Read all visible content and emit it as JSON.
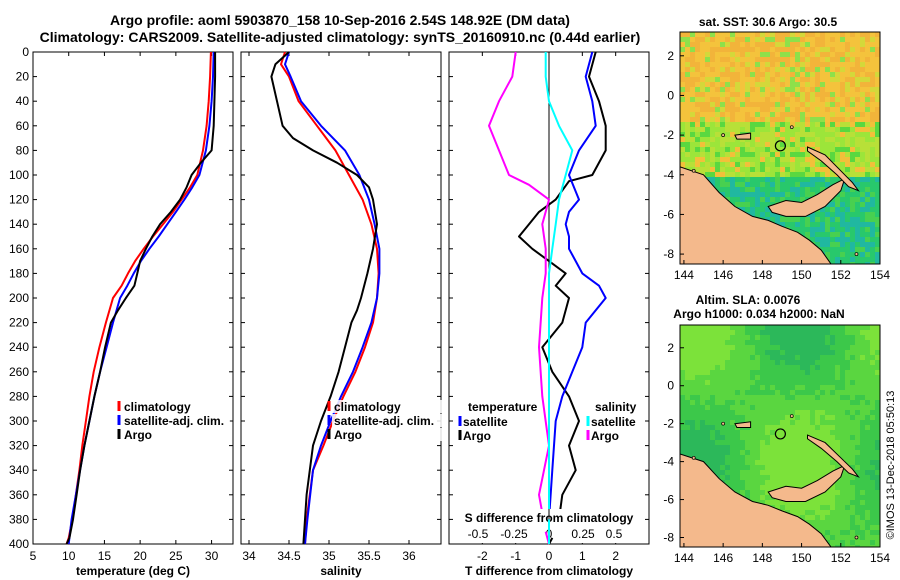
{
  "title": {
    "line1": "Argo profile: aoml 5903870_158 10-Sep-2016 2.54S 148.92E (DM data)",
    "line2": "Climatology: CARS2009. Satellite-adjusted climatology: synTS_20160910.nc (0.44d earlier)"
  },
  "colors": {
    "climatology": "#ff0000",
    "satellite": "#0000ff",
    "argo": "#000000",
    "t_argo": "#000000",
    "t_sat": "#0000ff",
    "s_argo": "#ff00ff",
    "s_sat": "#00ffff",
    "land": "#f4b98c"
  },
  "chart_data": [
    {
      "type": "line",
      "name": "temperature-profile",
      "xlabel": "temperature (deg C)",
      "ylabel": "",
      "xlim": [
        5,
        33
      ],
      "ylim": [
        400,
        0
      ],
      "xticks": [
        "5",
        "10",
        "15",
        "20",
        "25",
        "30"
      ],
      "yticks": [
        "0",
        "20",
        "40",
        "60",
        "80",
        "100",
        "120",
        "140",
        "160",
        "180",
        "200",
        "220",
        "240",
        "260",
        "280",
        "300",
        "320",
        "340",
        "360",
        "380",
        "400"
      ],
      "legend": [
        "climatology",
        "satellite-adj. clim.",
        "Argo"
      ],
      "series": [
        {
          "name": "climatology",
          "color": "#ff0000",
          "x": [
            29.9,
            29.8,
            29.6,
            29.3,
            28.8,
            28.0,
            27.0,
            25.8,
            24.6,
            23.2,
            21.8,
            20.5,
            19.3,
            18.3,
            17.4,
            16.2,
            15.2,
            14.3,
            13.5,
            12.9,
            12.4,
            11.9,
            11.5,
            11.0,
            10.5,
            10.0,
            9.7
          ],
          "y": [
            0,
            20,
            40,
            60,
            80,
            100,
            110,
            120,
            130,
            140,
            150,
            160,
            170,
            180,
            190,
            200,
            220,
            240,
            260,
            280,
            300,
            320,
            340,
            360,
            380,
            395,
            400
          ]
        },
        {
          "name": "satellite-adj. clim.",
          "color": "#0000ff",
          "x": [
            30.3,
            30.2,
            30.0,
            29.7,
            29.2,
            28.3,
            27.3,
            26.2,
            25.0,
            23.8,
            22.6,
            21.3,
            20.1,
            19.1,
            18.2,
            17.2,
            16.2,
            15.3,
            14.4,
            13.6,
            12.9,
            12.2,
            11.6,
            11.0,
            10.4,
            10.0
          ],
          "y": [
            0,
            20,
            40,
            60,
            80,
            100,
            110,
            120,
            130,
            140,
            150,
            160,
            170,
            180,
            190,
            200,
            220,
            240,
            260,
            280,
            300,
            320,
            340,
            360,
            380,
            400
          ]
        },
        {
          "name": "Argo",
          "color": "#000000",
          "x": [
            30.5,
            30.5,
            30.4,
            30.3,
            30.0,
            28.5,
            27.2,
            26.5,
            25.6,
            24.3,
            22.8,
            21.7,
            20.8,
            20.0,
            19.6,
            19.2,
            18.0,
            16.9,
            15.9,
            15.1,
            14.4,
            13.6,
            12.9,
            12.2,
            11.6,
            11.1,
            10.6,
            10.1,
            9.7
          ],
          "y": [
            0,
            20,
            40,
            60,
            80,
            90,
            100,
            110,
            120,
            130,
            140,
            150,
            160,
            170,
            180,
            190,
            200,
            210,
            220,
            240,
            260,
            280,
            300,
            320,
            340,
            360,
            380,
            395,
            400
          ]
        }
      ],
      "legend_entries": [
        {
          "label": "climatology",
          "color": "#ff0000"
        },
        {
          "label": "satellite-adj. clim.",
          "color": "#0000ff"
        },
        {
          "label": "Argo",
          "color": "#000000"
        }
      ]
    },
    {
      "type": "line",
      "name": "salinity-profile",
      "xlabel": "salinity",
      "xlim": [
        33.9,
        36.4
      ],
      "ylim": [
        400,
        0
      ],
      "xticks": [
        "34",
        "34.5",
        "35",
        "35.5",
        "36"
      ],
      "series": [
        {
          "name": "climatology",
          "color": "#ff0000",
          "x": [
            34.45,
            34.4,
            34.5,
            34.62,
            34.85,
            35.08,
            35.25,
            35.42,
            35.53,
            35.6,
            35.62,
            35.6,
            35.55,
            35.45,
            35.33,
            35.18,
            35.05,
            34.93,
            34.8,
            34.72,
            34.7
          ],
          "y": [
            0,
            10,
            20,
            40,
            60,
            80,
            100,
            120,
            140,
            160,
            180,
            200,
            220,
            240,
            260,
            280,
            300,
            320,
            340,
            380,
            400
          ]
        },
        {
          "name": "satellite-adj. clim.",
          "color": "#0000ff",
          "x": [
            34.5,
            34.45,
            34.52,
            34.65,
            34.9,
            35.2,
            35.38,
            35.5,
            35.57,
            35.63,
            35.63,
            35.6,
            35.53,
            35.42,
            35.3,
            35.15,
            35.02,
            34.9,
            34.8,
            34.73,
            34.7
          ],
          "y": [
            0,
            10,
            20,
            40,
            60,
            80,
            100,
            120,
            140,
            160,
            180,
            200,
            220,
            240,
            260,
            280,
            300,
            320,
            340,
            380,
            400
          ]
        },
        {
          "name": "Argo",
          "color": "#000000",
          "x": [
            34.5,
            34.33,
            34.28,
            34.35,
            34.42,
            34.55,
            34.8,
            35.1,
            35.35,
            35.5,
            35.55,
            35.6,
            35.55,
            35.48,
            35.4,
            35.35,
            35.28,
            35.2,
            35.12,
            35.02,
            34.9,
            34.8,
            34.72,
            34.68
          ],
          "y": [
            0,
            10,
            20,
            40,
            60,
            70,
            80,
            90,
            100,
            110,
            120,
            140,
            160,
            180,
            200,
            210,
            220,
            240,
            260,
            280,
            300,
            320,
            360,
            400
          ]
        }
      ],
      "legend_entries": [
        {
          "label": "climatology",
          "color": "#ff0000"
        },
        {
          "label": "satellite-adj. clim.",
          "color": "#0000ff"
        },
        {
          "label": "Argo",
          "color": "#000000"
        }
      ]
    },
    {
      "type": "line",
      "name": "difference-profile",
      "xlabel": "T difference from climatology",
      "xlabel_top": "S difference from climatology",
      "xlim": [
        -3,
        3
      ],
      "ylim": [
        400,
        0
      ],
      "xticks": [
        "-2",
        "-1",
        "0",
        "1",
        "2"
      ],
      "xticks_top": [
        "-0.5",
        "-0.25",
        "0",
        "0.25",
        "0.5"
      ],
      "series": [
        {
          "name": "T Argo",
          "color": "#000000",
          "x": [
            1.4,
            1.2,
            1.5,
            1.7,
            1.7,
            1.3,
            0.6,
            0.2,
            -0.3,
            -0.6,
            -0.9,
            -0.5,
            0.0,
            0.5,
            0.2,
            0.6,
            0.4,
            -0.2,
            0.1,
            0.6,
            0.9,
            0.6,
            0.8,
            0.4,
            0.3,
            0.1,
            0.0
          ],
          "y": [
            0,
            20,
            40,
            60,
            80,
            100,
            105,
            120,
            130,
            140,
            150,
            160,
            170,
            180,
            190,
            200,
            220,
            240,
            260,
            280,
            300,
            320,
            340,
            360,
            380,
            395,
            400
          ]
        },
        {
          "name": "T satellite",
          "color": "#0000ff",
          "x": [
            1.3,
            1.1,
            1.3,
            1.4,
            0.9,
            0.6,
            0.9,
            0.6,
            0.5,
            0.6,
            0.6,
            0.8,
            1.0,
            1.5,
            1.7,
            1.1,
            1.0,
            0.7,
            0.4,
            0.2,
            0.1,
            0.0,
            0.0
          ],
          "y": [
            0,
            20,
            40,
            60,
            80,
            100,
            120,
            130,
            140,
            150,
            160,
            170,
            180,
            190,
            200,
            220,
            240,
            260,
            280,
            300,
            340,
            380,
            400
          ]
        },
        {
          "name": "S Argo",
          "color": "#ff00ff",
          "x": [
            -1.0,
            -1.1,
            -1.5,
            -1.8,
            -1.5,
            -1.2,
            -0.6,
            0.0,
            -0.2,
            -0.1,
            -0.1,
            -0.2,
            -0.3,
            -0.2,
            0.0,
            -0.3,
            -0.1,
            0.0
          ],
          "y": [
            0,
            20,
            40,
            60,
            80,
            100,
            108,
            120,
            140,
            160,
            180,
            200,
            240,
            280,
            320,
            360,
            390,
            400
          ]
        },
        {
          "name": "S satellite",
          "color": "#00ffff",
          "x": [
            -0.1,
            -0.1,
            0.0,
            0.3,
            0.7,
            0.5,
            0.3,
            0.2,
            0.1,
            0.0,
            0.0,
            0.0,
            0.0,
            0.0,
            0.0
          ],
          "y": [
            0,
            20,
            40,
            60,
            80,
            100,
            120,
            140,
            160,
            180,
            200,
            260,
            320,
            380,
            400
          ]
        }
      ],
      "legend_temperature": {
        "title": "temperature",
        "entries": [
          {
            "label": "satellite",
            "color": "#0000ff"
          },
          {
            "label": "Argo",
            "color": "#000000"
          }
        ]
      },
      "legend_salinity": {
        "title": "salinity",
        "entries": [
          {
            "label": "satellite",
            "color": "#00ffff"
          },
          {
            "label": "Argo",
            "color": "#ff00ff"
          }
        ]
      }
    },
    {
      "type": "heatmap",
      "name": "sst-map",
      "title": "sat. SST: 30.6 Argo: 30.5",
      "xlim": [
        143.8,
        154
      ],
      "ylim": [
        -8.5,
        3.2
      ],
      "xticks": [
        "144",
        "146",
        "148",
        "150",
        "152",
        "154"
      ],
      "yticks": [
        "2",
        "0",
        "-2",
        "-4",
        "-6",
        "-8"
      ],
      "argo_position": {
        "lon": 148.92,
        "lat": -2.54
      }
    },
    {
      "type": "heatmap",
      "name": "sla-map",
      "title_line1": "Altim. SLA: 0.0076",
      "title_line2": "Argo h1000: 0.034 h2000: NaN",
      "xlim": [
        143.8,
        154
      ],
      "ylim": [
        -8.5,
        3.2
      ],
      "xticks": [
        "144",
        "146",
        "148",
        "150",
        "152",
        "154"
      ],
      "yticks": [
        "2",
        "0",
        "-2",
        "-4",
        "-6",
        "-8"
      ],
      "argo_position": {
        "lon": 148.92,
        "lat": -2.54
      }
    }
  ],
  "credit": "©IMOS 13-Dec-2018 05:50:13"
}
